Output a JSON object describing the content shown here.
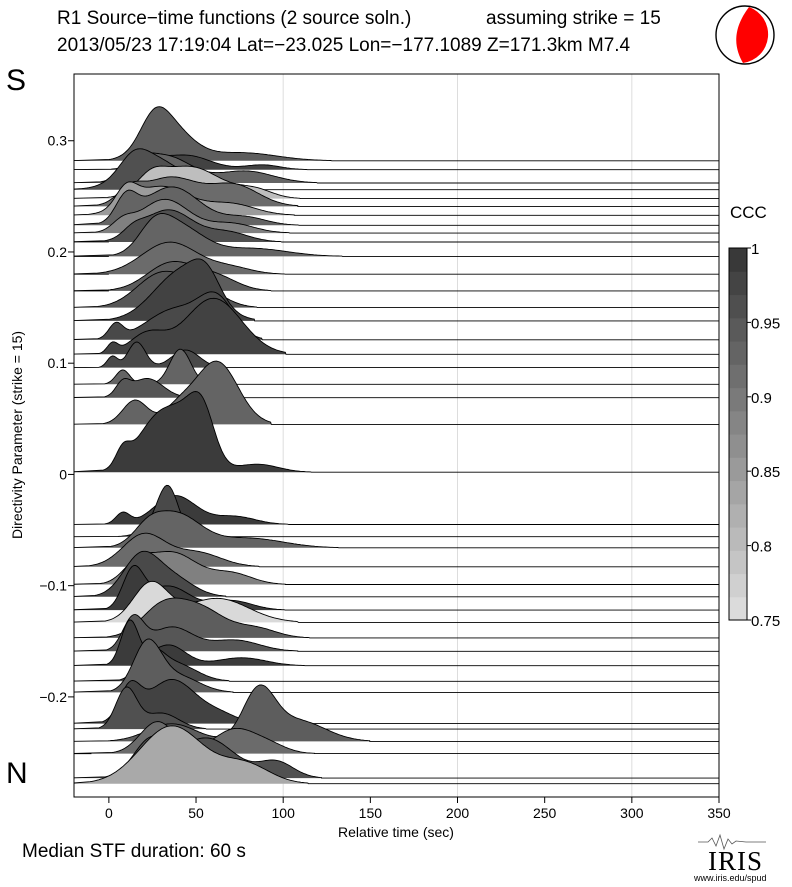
{
  "header": {
    "title": "R1 Source−time functions (2 source soln.)",
    "strike_note": "assuming strike = 15",
    "event_line": "2013/05/23 17:19:04  Lat=−23.025 Lon=−177.1089  Z=171.3km  M7.4"
  },
  "labels": {
    "south": "S",
    "north": "N"
  },
  "footer": {
    "median": "Median STF duration: 60 s",
    "logo_text": "IRIS",
    "logo_url": "www.iris.edu/spud"
  },
  "colors": {
    "beachball_fill": "#ff0000",
    "mark_line": "#000000"
  },
  "chart_data": {
    "type": "area",
    "title": "R1 Source−time functions (2 source soln.)",
    "xlabel": "Relative time (sec)",
    "ylabel": "Directivity Parameter (strike = 15)",
    "xlim": [
      -20,
      350
    ],
    "ylim": [
      -0.29,
      0.36
    ],
    "xticks": [
      0,
      50,
      100,
      150,
      200,
      250,
      300,
      350
    ],
    "yticks": [
      -0.2,
      -0.1,
      0,
      0.1,
      0.2,
      0.3
    ],
    "ytick_labels": [
      "−0.2",
      "−0.1",
      "0",
      "0.1",
      "0.2",
      "0.3"
    ],
    "vertical_gridlines": [
      100,
      200,
      300
    ],
    "colorbar": {
      "label": "CCC",
      "range": [
        0.75,
        1
      ],
      "ticks": [
        1,
        0.95,
        0.9,
        0.85,
        0.8,
        0.75
      ],
      "levels": 16
    },
    "series": [
      {
        "dir": 0.282,
        "ccc": 0.94,
        "start": -20,
        "end": 120,
        "pulses": [
          [
            26,
            8,
            0.3
          ],
          [
            34,
            13,
            0.42
          ],
          [
            76,
            20,
            0.1
          ]
        ]
      },
      {
        "dir": 0.274,
        "ccc": 0.98,
        "start": -20,
        "end": 108,
        "pulses": [
          [
            22,
            8,
            0.12
          ],
          [
            44,
            14,
            0.18
          ],
          [
            88,
            10,
            0.06
          ]
        ]
      },
      {
        "dir": 0.262,
        "ccc": 0.93,
        "start": -20,
        "end": 118,
        "pulses": [
          [
            16,
            8,
            0.18
          ],
          [
            33,
            14,
            0.33
          ],
          [
            78,
            16,
            0.15
          ]
        ]
      },
      {
        "dir": 0.256,
        "ccc": 0.96,
        "start": -20,
        "end": 112,
        "pulses": [
          [
            14,
            8,
            0.2
          ],
          [
            26,
            16,
            0.38
          ]
        ]
      },
      {
        "dir": 0.248,
        "ccc": 0.8,
        "start": -20,
        "end": 108,
        "pulses": [
          [
            24,
            8,
            0.18
          ],
          [
            46,
            18,
            0.4
          ],
          [
            84,
            10,
            0.1
          ]
        ]
      },
      {
        "dir": 0.241,
        "ccc": 0.92,
        "start": -20,
        "end": 118,
        "pulses": [
          [
            12,
            7,
            0.16
          ],
          [
            35,
            16,
            0.36
          ],
          [
            72,
            14,
            0.26
          ]
        ]
      },
      {
        "dir": 0.233,
        "ccc": 0.85,
        "start": -20,
        "end": 108,
        "pulses": [
          [
            10,
            6,
            0.24
          ],
          [
            30,
            16,
            0.36
          ],
          [
            70,
            14,
            0.14
          ]
        ]
      },
      {
        "dir": 0.224,
        "ccc": 0.93,
        "start": -20,
        "end": 112,
        "pulses": [
          [
            10,
            6,
            0.3
          ],
          [
            36,
            16,
            0.48
          ],
          [
            78,
            12,
            0.1
          ]
        ]
      },
      {
        "dir": 0.217,
        "ccc": 0.89,
        "start": -20,
        "end": 108,
        "pulses": [
          [
            8,
            6,
            0.12
          ],
          [
            32,
            14,
            0.42
          ],
          [
            70,
            13,
            0.12
          ]
        ]
      },
      {
        "dir": 0.209,
        "ccc": 0.96,
        "start": 0,
        "end": 108,
        "pulses": [
          [
            14,
            6,
            0.1
          ],
          [
            34,
            14,
            0.4
          ],
          [
            68,
            12,
            0.12
          ]
        ]
      },
      {
        "dir": 0.196,
        "ccc": 0.93,
        "start": 0,
        "end": 128,
        "pulses": [
          [
            26,
            9,
            0.28
          ],
          [
            40,
            14,
            0.36
          ],
          [
            82,
            20,
            0.1
          ]
        ]
      },
      {
        "dir": 0.18,
        "ccc": 0.92,
        "start": 0,
        "end": 108,
        "pulses": [
          [
            35,
            16,
            0.4
          ],
          [
            70,
            12,
            0.08
          ]
        ]
      },
      {
        "dir": 0.165,
        "ccc": 0.94,
        "start": 0,
        "end": 108,
        "pulses": [
          [
            36,
            14,
            0.35
          ],
          [
            62,
            12,
            0.16
          ]
        ]
      },
      {
        "dir": 0.15,
        "ccc": 0.95,
        "start": -20,
        "end": 108,
        "pulses": [
          [
            30,
            14,
            0.42
          ],
          [
            54,
            12,
            0.2
          ]
        ]
      },
      {
        "dir": 0.138,
        "ccc": 0.98,
        "start": -20,
        "end": 110,
        "pulses": [
          [
            42,
            16,
            0.62
          ],
          [
            56,
            8,
            0.3
          ]
        ]
      },
      {
        "dir": 0.121,
        "ccc": 0.97,
        "start": -20,
        "end": 112,
        "pulses": [
          [
            4,
            4,
            0.18
          ],
          [
            38,
            16,
            0.38
          ],
          [
            62,
            10,
            0.46
          ]
        ]
      },
      {
        "dir": 0.108,
        "ccc": 0.98,
        "start": -20,
        "end": 112,
        "pulses": [
          [
            2,
            3,
            0.12
          ],
          [
            22,
            10,
            0.25
          ],
          [
            60,
            16,
            0.7
          ]
        ]
      },
      {
        "dir": 0.096,
        "ccc": 0.97,
        "start": -20,
        "end": 112,
        "pulses": [
          [
            2,
            3,
            0.14
          ],
          [
            16,
            5,
            0.32
          ],
          [
            44,
            8,
            0.22
          ]
        ]
      },
      {
        "dir": 0.081,
        "ccc": 0.93,
        "start": -20,
        "end": 112,
        "pulses": [
          [
            8,
            4,
            0.18
          ],
          [
            41,
            6,
            0.44
          ]
        ]
      },
      {
        "dir": 0.069,
        "ccc": 0.95,
        "start": -20,
        "end": 112,
        "pulses": [
          [
            8,
            4,
            0.16
          ],
          [
            22,
            9,
            0.24
          ]
        ]
      },
      {
        "dir": 0.045,
        "ccc": 0.93,
        "start": -20,
        "end": 108,
        "pulses": [
          [
            15,
            7,
            0.3
          ],
          [
            40,
            9,
            0.2
          ],
          [
            62,
            12,
            0.78
          ]
        ]
      },
      {
        "dir": 0.002,
        "ccc": 0.99,
        "start": -20,
        "end": 108,
        "pulses": [
          [
            8,
            4,
            0.2
          ],
          [
            28,
            12,
            0.65
          ],
          [
            46,
            10,
            0.5
          ],
          [
            54,
            7,
            0.5
          ],
          [
            85,
            12,
            0.1
          ]
        ]
      },
      {
        "dir": -0.045,
        "ccc": 0.99,
        "start": -20,
        "end": 108,
        "pulses": [
          [
            8,
            4,
            0.14
          ],
          [
            38,
            12,
            0.36
          ],
          [
            72,
            12,
            0.1
          ]
        ]
      },
      {
        "dir": -0.056,
        "ccc": 0.97,
        "start": -20,
        "end": 108,
        "pulses": [
          [
            26,
            8,
            0.1
          ],
          [
            34,
            6,
            0.58
          ]
        ]
      },
      {
        "dir": -0.066,
        "ccc": 0.93,
        "start": -20,
        "end": 128,
        "pulses": [
          [
            22,
            8,
            0.16
          ],
          [
            38,
            14,
            0.42
          ],
          [
            80,
            20,
            0.12
          ]
        ]
      },
      {
        "dir": -0.083,
        "ccc": 0.92,
        "start": -20,
        "end": 112,
        "pulses": [
          [
            20,
            12,
            0.4
          ],
          [
            50,
            14,
            0.18
          ]
        ]
      },
      {
        "dir": -0.099,
        "ccc": 0.89,
        "start": -20,
        "end": 100,
        "pulses": [
          [
            16,
            8,
            0.2
          ],
          [
            36,
            14,
            0.4
          ],
          [
            70,
            12,
            0.14
          ]
        ]
      },
      {
        "dir": -0.11,
        "ccc": 0.97,
        "start": -20,
        "end": 108,
        "pulses": [
          [
            18,
            10,
            0.48
          ],
          [
            36,
            12,
            0.24
          ]
        ]
      },
      {
        "dir": -0.122,
        "ccc": 0.99,
        "start": -20,
        "end": 112,
        "pulses": [
          [
            14,
            6,
            0.48
          ],
          [
            34,
            12,
            0.3
          ],
          [
            70,
            12,
            0.12
          ]
        ]
      },
      {
        "dir": -0.133,
        "ccc": 0.76,
        "start": -20,
        "end": 108,
        "pulses": [
          [
            24,
            10,
            0.48
          ],
          [
            62,
            18,
            0.3
          ]
        ]
      },
      {
        "dir": -0.147,
        "ccc": 0.94,
        "start": -20,
        "end": 118,
        "pulses": [
          [
            30,
            12,
            0.35
          ],
          [
            52,
            14,
            0.36
          ],
          [
            84,
            12,
            0.12
          ]
        ]
      },
      {
        "dir": -0.159,
        "ccc": 0.95,
        "start": -20,
        "end": 112,
        "pulses": [
          [
            14,
            6,
            0.4
          ],
          [
            36,
            12,
            0.3
          ],
          [
            72,
            14,
            0.14
          ]
        ]
      },
      {
        "dir": -0.172,
        "ccc": 0.99,
        "start": -20,
        "end": 118,
        "pulses": [
          [
            12,
            5,
            0.55
          ],
          [
            34,
            10,
            0.26
          ],
          [
            76,
            14,
            0.1
          ]
        ]
      },
      {
        "dir": -0.186,
        "ccc": 0.97,
        "start": -20,
        "end": 112,
        "pulses": [
          [
            24,
            7,
            0.3
          ],
          [
            38,
            12,
            0.22
          ]
        ]
      },
      {
        "dir": -0.196,
        "ccc": 0.94,
        "start": -20,
        "end": 112,
        "pulses": [
          [
            22,
            8,
            0.6
          ],
          [
            40,
            12,
            0.2
          ]
        ]
      },
      {
        "dir": -0.224,
        "ccc": 0.98,
        "start": -20,
        "end": 112,
        "pulses": [
          [
            12,
            6,
            0.4
          ],
          [
            36,
            14,
            0.55
          ],
          [
            64,
            10,
            0.1
          ]
        ]
      },
      {
        "dir": -0.229,
        "ccc": 0.96,
        "start": -20,
        "end": 108,
        "pulses": [
          [
            10,
            6,
            0.5
          ],
          [
            30,
            10,
            0.2
          ]
        ]
      },
      {
        "dir": -0.24,
        "ccc": 0.94,
        "start": -20,
        "end": 140,
        "pulses": [
          [
            36,
            14,
            0.22
          ],
          [
            86,
            9,
            0.6
          ],
          [
            108,
            16,
            0.26
          ]
        ]
      },
      {
        "dir": -0.251,
        "ccc": 0.92,
        "start": -10,
        "end": 118,
        "pulses": [
          [
            28,
            10,
            0.4
          ],
          [
            72,
            12,
            0.3
          ],
          [
            92,
            10,
            0.1
          ]
        ]
      },
      {
        "dir": -0.273,
        "ccc": 0.96,
        "start": -20,
        "end": 112,
        "pulses": [
          [
            24,
            10,
            0.45
          ],
          [
            56,
            16,
            0.5
          ],
          [
            96,
            10,
            0.2
          ]
        ]
      },
      {
        "dir": -0.278,
        "ccc": 0.83,
        "start": -20,
        "end": 108,
        "pulses": [
          [
            36,
            18,
            0.72
          ],
          [
            78,
            14,
            0.24
          ]
        ]
      }
    ]
  }
}
